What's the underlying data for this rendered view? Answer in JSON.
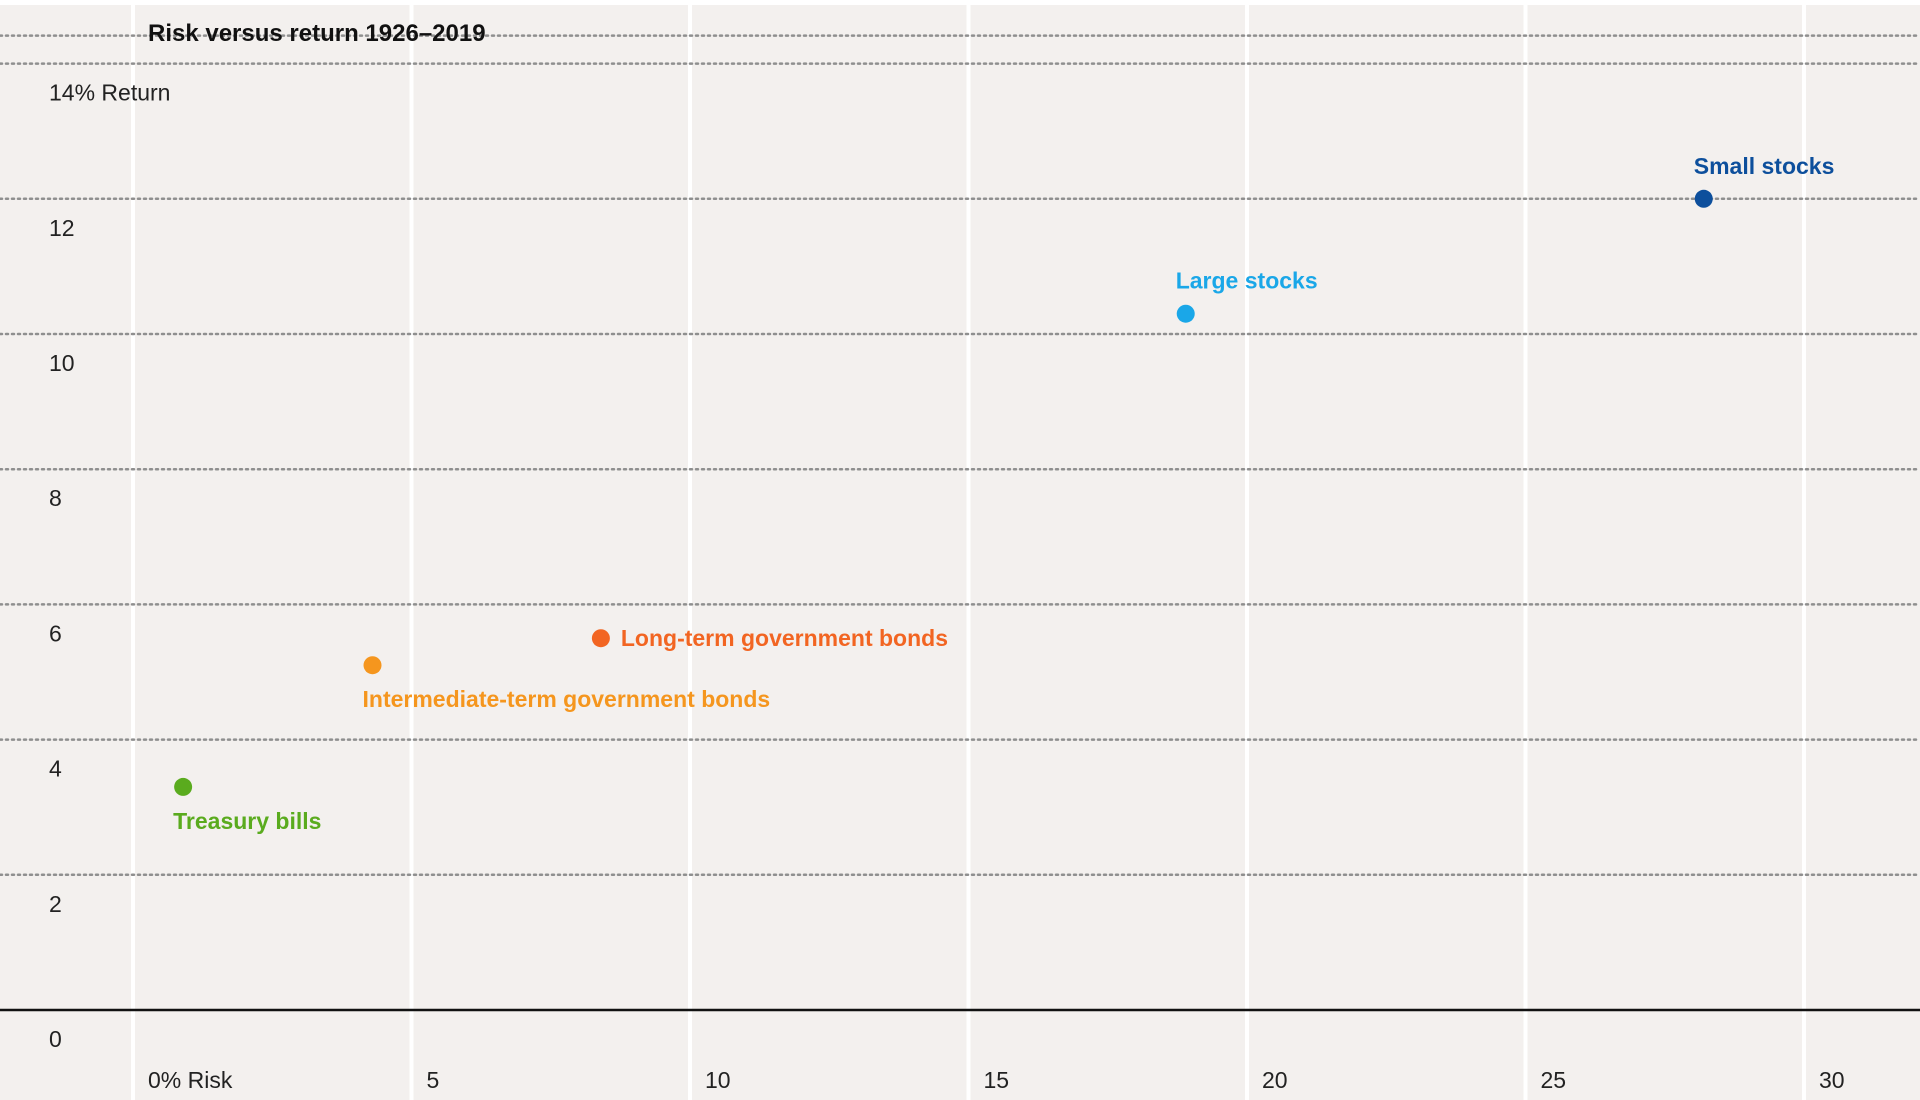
{
  "chart_data": {
    "type": "scatter",
    "title": "Risk versus return 1926–2019",
    "xlabel": "",
    "ylabel": "",
    "xlim": [
      0,
      32
    ],
    "ylim": [
      0,
      14
    ],
    "x_ticks": [
      0,
      5,
      10,
      15,
      20,
      25,
      30
    ],
    "x_tick_labels": [
      "0% Risk",
      "5",
      "10",
      "15",
      "20",
      "25",
      "30"
    ],
    "y_ticks": [
      0,
      2,
      4,
      6,
      8,
      10,
      12,
      14
    ],
    "y_tick_labels": [
      "0",
      "2",
      "4",
      "6",
      "8",
      "10",
      "12",
      "14% Return"
    ],
    "grid": {
      "vertical": "solid-white",
      "horizontal": "dotted"
    },
    "background_color": "#f3f0ee",
    "gridline_color": "#8f8f8f",
    "axis_color": "#111111",
    "points": [
      {
        "name": "Treasury bills",
        "x": 0.9,
        "y": 3.3,
        "color": "#5aab1e",
        "label_pos": "below"
      },
      {
        "name": "Intermediate-term government bonds",
        "x": 4.3,
        "y": 5.1,
        "color": "#f5961e",
        "label_pos": "below"
      },
      {
        "name": "Long-term government bonds",
        "x": 8.4,
        "y": 5.5,
        "color": "#f26522",
        "label_pos": "right"
      },
      {
        "name": "Large stocks",
        "x": 18.9,
        "y": 10.3,
        "color": "#1aa7e8",
        "label_pos": "above"
      },
      {
        "name": "Small stocks",
        "x": 28.2,
        "y": 12.0,
        "color": "#0d4f9c",
        "label_pos": "above"
      }
    ]
  }
}
